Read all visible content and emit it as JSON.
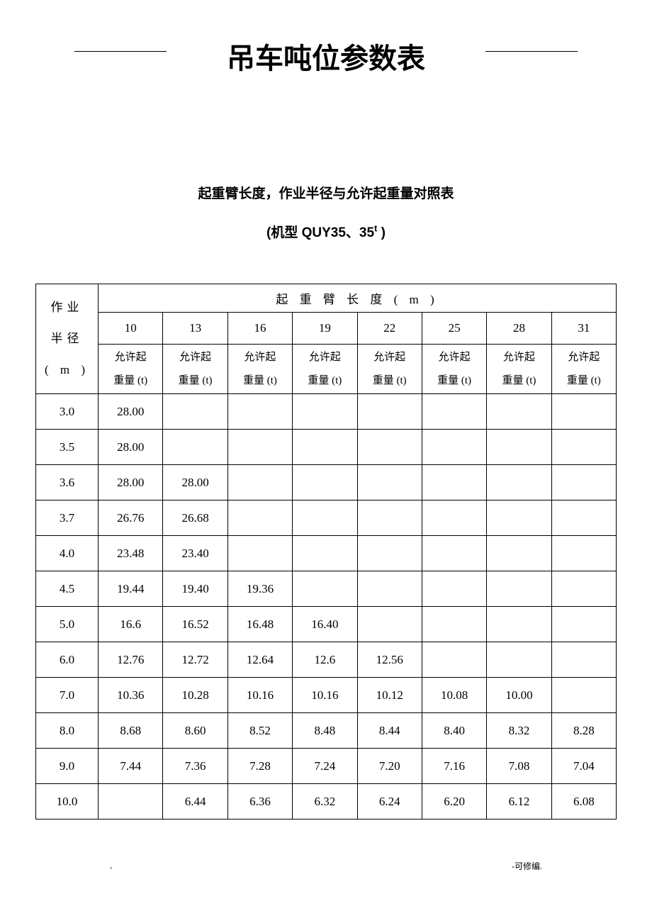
{
  "title": "吊车吨位参数表",
  "subtitle_1": "起重臂长度，作业半径与允许起重量对照表",
  "subtitle_2_prefix": "(机型 QUY35、35",
  "subtitle_2_sup": "t",
  "subtitle_2_suffix": " )",
  "table": {
    "radius_header_line1": "作业",
    "radius_header_line2": "半径",
    "radius_header_line3": "( m )",
    "boom_length_header": "起 重 臂 长 度  ( m )",
    "columns": [
      "10",
      "13",
      "16",
      "19",
      "22",
      "25",
      "28",
      "31"
    ],
    "sub_header_line1": "允许起",
    "sub_header_line2": "重量 (t)",
    "rows": [
      {
        "radius": "3.0",
        "values": [
          "28.00",
          "",
          "",
          "",
          "",
          "",
          "",
          ""
        ]
      },
      {
        "radius": "3.5",
        "values": [
          "28.00",
          "",
          "",
          "",
          "",
          "",
          "",
          ""
        ]
      },
      {
        "radius": "3.6",
        "values": [
          "28.00",
          "28.00",
          "",
          "",
          "",
          "",
          "",
          ""
        ]
      },
      {
        "radius": "3.7",
        "values": [
          "26.76",
          "26.68",
          "",
          "",
          "",
          "",
          "",
          ""
        ]
      },
      {
        "radius": "4.0",
        "values": [
          "23.48",
          "23.40",
          "",
          "",
          "",
          "",
          "",
          ""
        ]
      },
      {
        "radius": "4.5",
        "values": [
          "19.44",
          "19.40",
          "19.36",
          "",
          "",
          "",
          "",
          ""
        ]
      },
      {
        "radius": "5.0",
        "values": [
          "16.6",
          "16.52",
          "16.48",
          "16.40",
          "",
          "",
          "",
          ""
        ]
      },
      {
        "radius": "6.0",
        "values": [
          "12.76",
          "12.72",
          "12.64",
          "12.6",
          "12.56",
          "",
          "",
          ""
        ]
      },
      {
        "radius": "7.0",
        "values": [
          "10.36",
          "10.28",
          "10.16",
          "10.16",
          "10.12",
          "10.08",
          "10.00",
          ""
        ]
      },
      {
        "radius": "8.0",
        "values": [
          "8.68",
          "8.60",
          "8.52",
          "8.48",
          "8.44",
          "8.40",
          "8.32",
          "8.28"
        ]
      },
      {
        "radius": "9.0",
        "values": [
          "7.44",
          "7.36",
          "7.28",
          "7.24",
          "7.20",
          "7.16",
          "7.08",
          "7.04"
        ]
      },
      {
        "radius": "10.0",
        "values": [
          "",
          "6.44",
          "6.36",
          "6.32",
          "6.24",
          "6.20",
          "6.12",
          "6.08"
        ]
      }
    ]
  },
  "footer_left": "-",
  "footer_right": "-可修编."
}
